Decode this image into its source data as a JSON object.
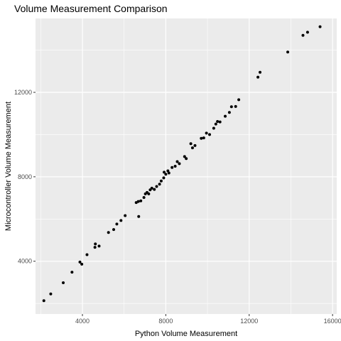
{
  "chart_data": {
    "type": "scatter",
    "title": "Volume Measurement Comparison",
    "xlabel": "Python Volume Measurement",
    "ylabel": "Microcontroller Volume Measurement",
    "xlim": [
      1750,
      16200
    ],
    "ylim": [
      1500,
      15500
    ],
    "x_ticks": [
      4000,
      8000,
      12000,
      16000
    ],
    "x_minor_ticks": [
      2000,
      6000,
      10000,
      14000
    ],
    "y_ticks": [
      4000,
      8000,
      12000
    ],
    "y_minor_ticks": [
      2000,
      6000,
      10000,
      14000
    ],
    "grid": true,
    "legend": "none",
    "colors": {
      "panel": "#ebebeb",
      "grid": "#ffffff",
      "point": "#000000",
      "tick": "#333333"
    },
    "points": [
      {
        "x": 2150,
        "y": 2130
      },
      {
        "x": 2480,
        "y": 2450
      },
      {
        "x": 3080,
        "y": 2980
      },
      {
        "x": 3500,
        "y": 3480
      },
      {
        "x": 3880,
        "y": 3960
      },
      {
        "x": 3970,
        "y": 3860
      },
      {
        "x": 4220,
        "y": 4310
      },
      {
        "x": 4600,
        "y": 4660
      },
      {
        "x": 4620,
        "y": 4820
      },
      {
        "x": 4800,
        "y": 4720
      },
      {
        "x": 5250,
        "y": 5360
      },
      {
        "x": 5500,
        "y": 5500
      },
      {
        "x": 5650,
        "y": 5760
      },
      {
        "x": 5850,
        "y": 5930
      },
      {
        "x": 6050,
        "y": 6160
      },
      {
        "x": 6580,
        "y": 6780
      },
      {
        "x": 6680,
        "y": 6830
      },
      {
        "x": 6700,
        "y": 6120
      },
      {
        "x": 6800,
        "y": 6860
      },
      {
        "x": 6950,
        "y": 7020
      },
      {
        "x": 7020,
        "y": 7190
      },
      {
        "x": 7100,
        "y": 7260
      },
      {
        "x": 7180,
        "y": 7190
      },
      {
        "x": 7250,
        "y": 7380
      },
      {
        "x": 7330,
        "y": 7460
      },
      {
        "x": 7450,
        "y": 7400
      },
      {
        "x": 7560,
        "y": 7540
      },
      {
        "x": 7700,
        "y": 7650
      },
      {
        "x": 7780,
        "y": 7800
      },
      {
        "x": 7900,
        "y": 7950
      },
      {
        "x": 7920,
        "y": 8220
      },
      {
        "x": 8000,
        "y": 8120
      },
      {
        "x": 8100,
        "y": 8280
      },
      {
        "x": 8150,
        "y": 8180
      },
      {
        "x": 8300,
        "y": 8440
      },
      {
        "x": 8450,
        "y": 8500
      },
      {
        "x": 8550,
        "y": 8720
      },
      {
        "x": 8650,
        "y": 8620
      },
      {
        "x": 8900,
        "y": 8960
      },
      {
        "x": 8980,
        "y": 8860
      },
      {
        "x": 9200,
        "y": 9570
      },
      {
        "x": 9280,
        "y": 9370
      },
      {
        "x": 9400,
        "y": 9480
      },
      {
        "x": 9700,
        "y": 9820
      },
      {
        "x": 9820,
        "y": 9840
      },
      {
        "x": 9950,
        "y": 10070
      },
      {
        "x": 10100,
        "y": 10000
      },
      {
        "x": 10300,
        "y": 10300
      },
      {
        "x": 10400,
        "y": 10500
      },
      {
        "x": 10480,
        "y": 10620
      },
      {
        "x": 10600,
        "y": 10600
      },
      {
        "x": 10850,
        "y": 10870
      },
      {
        "x": 11050,
        "y": 11050
      },
      {
        "x": 11150,
        "y": 11320
      },
      {
        "x": 11350,
        "y": 11330
      },
      {
        "x": 11500,
        "y": 11650
      },
      {
        "x": 12420,
        "y": 12720
      },
      {
        "x": 12520,
        "y": 12950
      },
      {
        "x": 13850,
        "y": 13910
      },
      {
        "x": 14580,
        "y": 14700
      },
      {
        "x": 14800,
        "y": 14850
      },
      {
        "x": 15400,
        "y": 15110
      }
    ]
  }
}
